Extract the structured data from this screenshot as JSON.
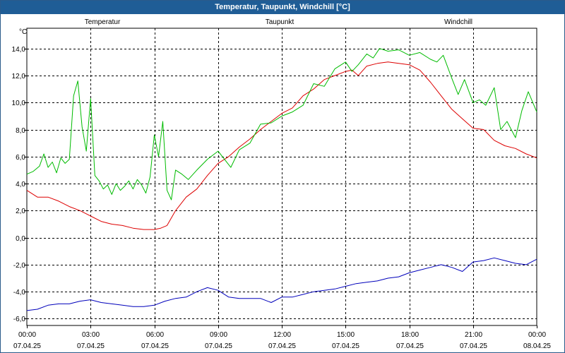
{
  "window": {
    "title": "Temperatur, Taupunkt, Windchill [°C]"
  },
  "colors": {
    "titlebar": "#1f5d96",
    "temperatur": "#dd0000",
    "taupunkt": "#0000bb",
    "windchill": "#00bb00",
    "grid": "#000000"
  },
  "chart_data": {
    "type": "line",
    "title": "Temperatur, Taupunkt, Windchill [°C]",
    "ylabel": "°C",
    "xlabel": "",
    "ylim": [
      -6.5,
      15.5
    ],
    "xlim": [
      0,
      24
    ],
    "yticks": [
      14,
      12,
      10,
      8,
      6,
      4,
      2,
      0,
      -2,
      -4,
      -6
    ],
    "ytick_labels": [
      "14,0",
      "12,0",
      "10,0",
      "8,0",
      "6,0",
      "4,0",
      "2,0",
      "0,0",
      "-2,0",
      "-4,0",
      "-6,0"
    ],
    "xticks": [
      0,
      3,
      6,
      9,
      12,
      15,
      18,
      21,
      24
    ],
    "xtick_times": [
      "00:00",
      "03:00",
      "06:00",
      "09:00",
      "12:00",
      "15:00",
      "18:00",
      "21:00",
      "00:00"
    ],
    "xtick_dates": [
      "07.04.25",
      "07.04.25",
      "07.04.25",
      "07.04.25",
      "07.04.25",
      "07.04.25",
      "07.04.25",
      "07.04.25",
      "08.04.25"
    ],
    "grid": true,
    "legend_position": "top",
    "series": [
      {
        "name": "Temperatur",
        "x": [
          0,
          0.5,
          1,
          1.5,
          2,
          2.5,
          3,
          3.5,
          4,
          4.5,
          5,
          5.5,
          6,
          6.3,
          6.6,
          7,
          7.5,
          8,
          8.5,
          9,
          9.5,
          10,
          10.5,
          11,
          11.5,
          12,
          12.5,
          13,
          13.5,
          14,
          14.5,
          15,
          15.3,
          15.6,
          16,
          16.5,
          17,
          17.5,
          18,
          18.5,
          19,
          19.5,
          20,
          20.5,
          21,
          21.5,
          22,
          22.5,
          23,
          23.5,
          24
        ],
        "values": [
          3.5,
          3.0,
          3.0,
          2.7,
          2.3,
          2.0,
          1.6,
          1.2,
          1.0,
          0.9,
          0.7,
          0.6,
          0.6,
          0.7,
          0.9,
          2.0,
          3.0,
          3.6,
          4.6,
          5.5,
          6.0,
          6.7,
          7.3,
          8.0,
          8.6,
          9.2,
          9.6,
          10.5,
          11.0,
          11.7,
          12.0,
          12.3,
          12.4,
          12.0,
          12.7,
          12.9,
          13.0,
          12.9,
          12.8,
          12.4,
          11.5,
          10.5,
          9.5,
          8.8,
          8.1,
          8.0,
          7.2,
          6.8,
          6.6,
          6.2,
          5.9
        ]
      },
      {
        "name": "Taupunkt",
        "x": [
          0,
          0.5,
          1,
          1.5,
          2,
          2.5,
          3,
          3.5,
          4,
          4.5,
          5,
          5.5,
          6,
          6.5,
          7,
          7.5,
          8,
          8.5,
          9,
          9.5,
          10,
          10.5,
          11,
          11.5,
          12,
          12.5,
          13,
          13.5,
          14,
          14.5,
          15,
          15.5,
          16,
          16.5,
          17,
          17.5,
          18,
          18.5,
          19,
          19.5,
          20,
          20.5,
          21,
          21.5,
          22,
          22.5,
          23,
          23.5,
          24
        ],
        "values": [
          -5.4,
          -5.3,
          -5.0,
          -4.9,
          -4.9,
          -4.7,
          -4.6,
          -4.8,
          -4.9,
          -5.0,
          -5.1,
          -5.1,
          -5.0,
          -4.7,
          -4.5,
          -4.4,
          -4.0,
          -3.7,
          -3.9,
          -4.4,
          -4.5,
          -4.5,
          -4.5,
          -4.8,
          -4.4,
          -4.4,
          -4.2,
          -4.0,
          -3.9,
          -3.8,
          -3.6,
          -3.4,
          -3.3,
          -3.2,
          -3.0,
          -2.9,
          -2.6,
          -2.4,
          -2.2,
          -2.0,
          -2.2,
          -2.5,
          -1.8,
          -1.7,
          -1.5,
          -1.7,
          -1.9,
          -2.0,
          -1.6
        ]
      },
      {
        "name": "Windchill",
        "x": [
          0,
          0.3,
          0.6,
          0.8,
          1,
          1.2,
          1.4,
          1.6,
          1.8,
          2,
          2.2,
          2.4,
          2.6,
          2.8,
          3,
          3.2,
          3.4,
          3.6,
          3.8,
          4,
          4.2,
          4.4,
          4.6,
          4.8,
          5,
          5.2,
          5.4,
          5.6,
          5.8,
          6,
          6.2,
          6.4,
          6.6,
          6.8,
          7,
          7.3,
          7.6,
          8,
          8.5,
          9,
          9.3,
          9.6,
          10,
          10.5,
          11,
          11.5,
          12,
          12.5,
          13,
          13.5,
          14,
          14.5,
          15,
          15.3,
          15.6,
          16,
          16.3,
          16.6,
          17,
          17.5,
          18,
          18.5,
          19,
          19.3,
          19.6,
          20,
          20.3,
          20.6,
          21,
          21.3,
          21.6,
          22,
          22.3,
          22.6,
          23,
          23.3,
          23.6,
          24
        ],
        "values": [
          4.7,
          4.9,
          5.3,
          6.2,
          5.2,
          5.6,
          4.8,
          5.9,
          5.5,
          5.8,
          10.5,
          11.6,
          8.2,
          6.4,
          10.3,
          4.6,
          4.2,
          3.6,
          3.9,
          3.2,
          4.0,
          3.5,
          3.8,
          4.2,
          3.6,
          4.3,
          3.9,
          3.3,
          4.5,
          7.6,
          6.0,
          8.6,
          3.5,
          2.8,
          5.0,
          4.7,
          4.3,
          5.0,
          5.8,
          6.4,
          5.8,
          5.2,
          6.5,
          7.0,
          8.4,
          8.5,
          9.0,
          9.3,
          9.8,
          11.4,
          11.2,
          12.5,
          13.0,
          12.3,
          12.8,
          13.6,
          13.3,
          14.0,
          13.8,
          13.9,
          13.5,
          13.7,
          13.2,
          13.0,
          13.5,
          11.8,
          10.6,
          11.7,
          10.0,
          10.2,
          9.8,
          11.1,
          8.0,
          8.6,
          7.4,
          9.4,
          10.8,
          9.3
        ]
      }
    ]
  }
}
